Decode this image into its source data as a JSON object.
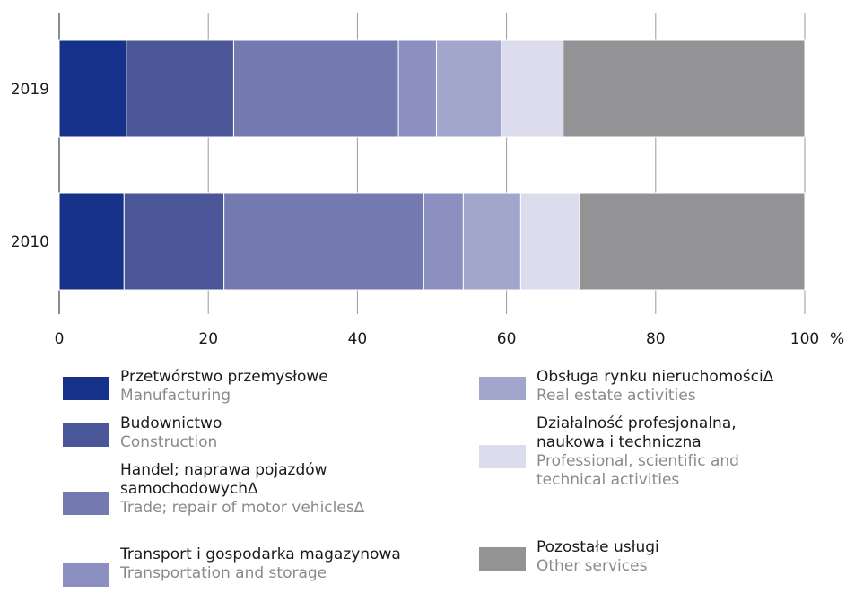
{
  "chart_data": {
    "type": "bar",
    "orientation": "horizontal",
    "stacked": true,
    "categories": [
      "2019",
      "2010"
    ],
    "series": [
      {
        "name": "Przetwórstwo przemysłowe",
        "name_en": "Manufacturing",
        "color": "#15318a",
        "values": [
          9.0,
          8.7
        ]
      },
      {
        "name": "Budownictwo",
        "name_en": "Construction",
        "color": "#4a5698",
        "values": [
          14.4,
          13.4
        ]
      },
      {
        "name": "Handel; naprawa pojazdów samochodowych∆",
        "name_en": "Trade; repair of motor vehicles∆",
        "color": "#7479af",
        "values": [
          22.1,
          26.8
        ]
      },
      {
        "name": "Transport i gospodarka magazynowa",
        "name_en": "Transportation and storage",
        "color": "#8b90c0",
        "values": [
          5.1,
          5.3
        ]
      },
      {
        "name": "Obsługa rynku nieruchomości∆",
        "name_en": "Real estate activities",
        "color": "#a2a5cc",
        "values": [
          8.7,
          7.7
        ]
      },
      {
        "name": "Działalność profesjonalna, naukowa i techniczna",
        "name_en": "Professional, scientific and technical activities",
        "color": "#dcdcec",
        "values": [
          8.3,
          7.9
        ]
      },
      {
        "name": "Pozostałe usługi",
        "name_en": "Other services",
        "color": "#939395",
        "values": [
          32.4,
          30.2
        ]
      }
    ],
    "xlim": [
      0,
      100
    ],
    "xticks": [
      "0",
      "20",
      "40",
      "60",
      "80",
      "100"
    ],
    "xunit": "%",
    "grid": true,
    "legend_position": "bottom"
  },
  "legend": {
    "items": [
      {
        "pl": "Przetwórstwo przemysłowe",
        "en": "Manufacturing",
        "color": "#15318a"
      },
      {
        "pl": "Budownictwo",
        "en": "Construction",
        "color": "#4a5698"
      },
      {
        "pl": "Handel; naprawa pojazdów samochodowych∆",
        "en": "Trade; repair of motor vehicles∆",
        "color": "#7479af"
      },
      {
        "pl": "Transport i gospodarka magazynowa",
        "en": "Transportation and storage",
        "color": "#8b90c0"
      },
      {
        "pl": "Obsługa rynku nieruchomości∆",
        "en": "Real estate activities",
        "color": "#a2a5cc"
      },
      {
        "pl": "Działalność profesjonalna, naukowa i techniczna",
        "en": "Professional, scientific and technical activities",
        "color": "#dcdcec"
      },
      {
        "pl": "Pozostałe usługi",
        "en": "Other services",
        "color": "#939395"
      }
    ]
  }
}
